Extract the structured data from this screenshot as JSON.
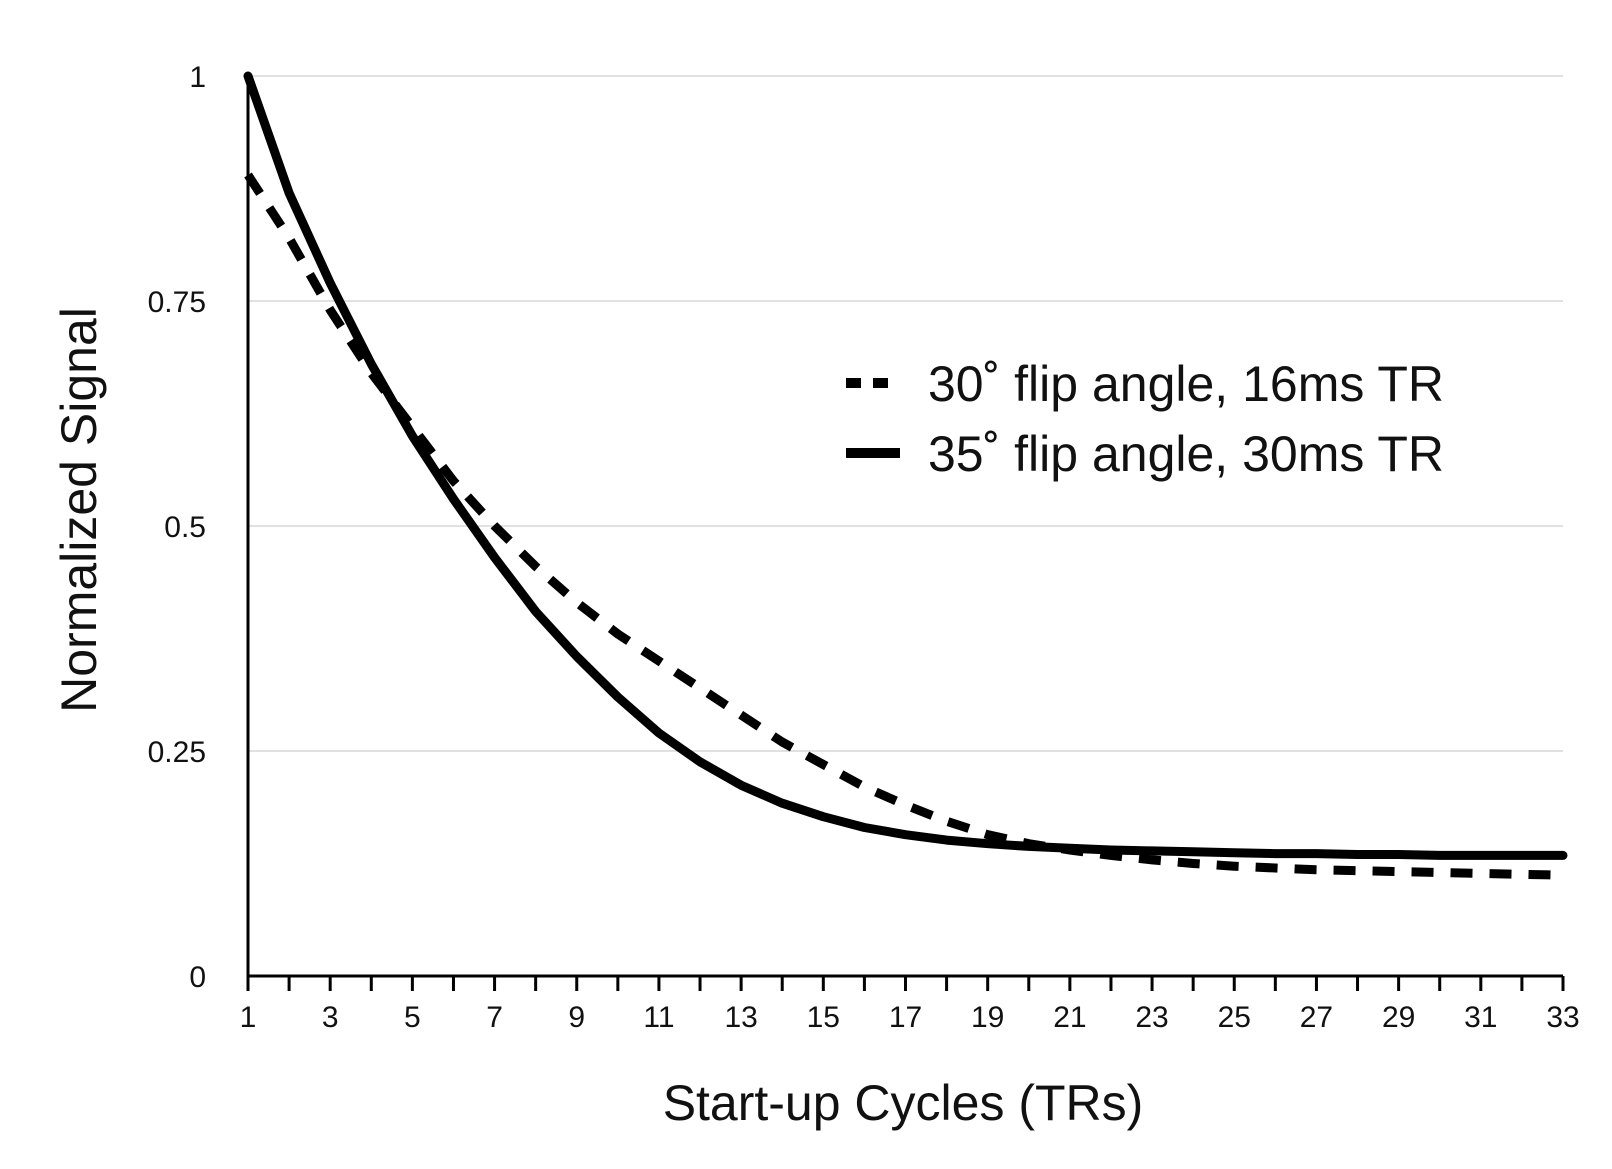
{
  "chart_data": {
    "type": "line",
    "title": "",
    "xlabel": "Start-up Cycles (TRs)",
    "ylabel": "Normalized Signal",
    "xlim": [
      1,
      33
    ],
    "ylim": [
      0,
      1
    ],
    "grid": true,
    "legend_position": "upper-right",
    "x_tick_labels": [
      "1",
      "3",
      "5",
      "7",
      "9",
      "11",
      "13",
      "15",
      "17",
      "19",
      "21",
      "23",
      "25",
      "27",
      "29",
      "31",
      "33"
    ],
    "y_tick_labels": [
      "0",
      "0.25",
      "0.5",
      "0.75",
      "1"
    ],
    "series": [
      {
        "name": "30˚ flip angle, 16ms TR",
        "line_style": "dashed",
        "x": [
          1,
          2,
          3,
          4,
          5,
          6,
          7,
          8,
          9,
          10,
          11,
          12,
          13,
          14,
          15,
          16,
          17,
          18,
          19,
          20,
          21,
          22,
          23,
          24,
          25,
          26,
          27,
          28,
          29,
          30,
          31,
          32,
          33
        ],
        "values": [
          0.89,
          0.82,
          0.74,
          0.67,
          0.61,
          0.55,
          0.5,
          0.455,
          0.415,
          0.38,
          0.35,
          0.32,
          0.29,
          0.26,
          0.235,
          0.21,
          0.19,
          0.172,
          0.157,
          0.147,
          0.14,
          0.134,
          0.129,
          0.125,
          0.122,
          0.12,
          0.118,
          0.117,
          0.116,
          0.115,
          0.114,
          0.113,
          0.112
        ]
      },
      {
        "name": "35˚ flip angle, 30ms TR",
        "line_style": "solid",
        "x": [
          1,
          2,
          3,
          4,
          5,
          6,
          7,
          8,
          9,
          10,
          11,
          12,
          13,
          14,
          15,
          16,
          17,
          18,
          19,
          20,
          21,
          22,
          23,
          24,
          25,
          26,
          27,
          28,
          29,
          30,
          31,
          32,
          33
        ],
        "values": [
          1.0,
          0.87,
          0.77,
          0.68,
          0.6,
          0.53,
          0.465,
          0.405,
          0.355,
          0.31,
          0.27,
          0.238,
          0.212,
          0.192,
          0.177,
          0.165,
          0.157,
          0.151,
          0.147,
          0.144,
          0.142,
          0.14,
          0.139,
          0.138,
          0.137,
          0.136,
          0.136,
          0.135,
          0.135,
          0.134,
          0.134,
          0.134,
          0.134
        ]
      }
    ]
  }
}
